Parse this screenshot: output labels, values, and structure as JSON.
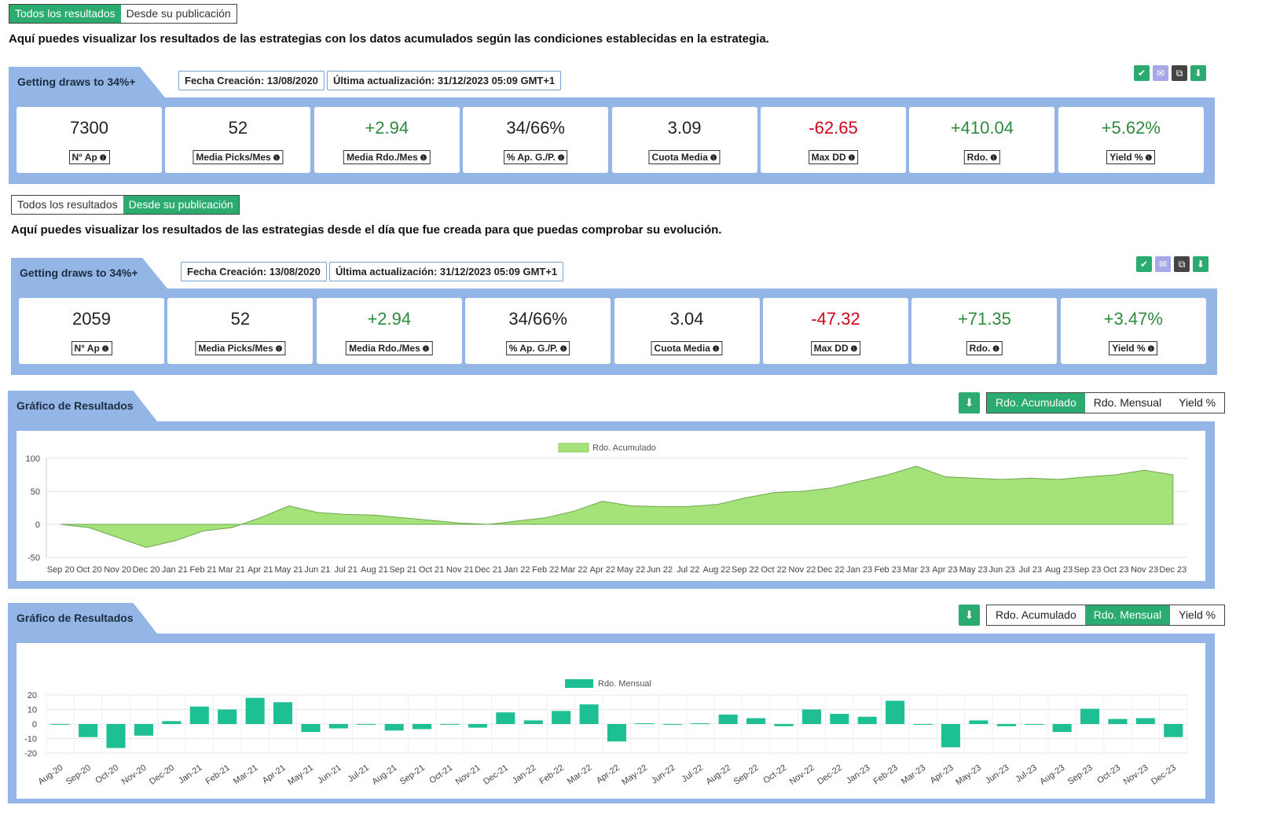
{
  "section1": {
    "toggle": [
      "Todos los resultados",
      "Desde su publicación"
    ],
    "active": 0,
    "description": "Aquí puedes visualizar los resultados de las estrategias con los datos acumulados según las condiciones establecidas en la estrategia.",
    "strategy_name": "Getting draws to 34%+",
    "creation_date": "Fecha Creación: 13/08/2020",
    "last_update": "Última actualización: 31/12/2023 05:09 GMT+1",
    "stats": [
      {
        "value": "7300",
        "label": "N° Ap",
        "tone": "neutral"
      },
      {
        "value": "52",
        "label": "Media Picks/Mes",
        "tone": "neutral"
      },
      {
        "value": "+2.94",
        "label": "Media Rdo./Mes",
        "tone": "pos"
      },
      {
        "value": "34/66%",
        "label": "% Ap. G./P.",
        "tone": "neutral"
      },
      {
        "value": "3.09",
        "label": "Cuota Media",
        "tone": "neutral"
      },
      {
        "value": "-62.65",
        "label": "Max DD",
        "tone": "neg"
      },
      {
        "value": "+410.04",
        "label": "Rdo.",
        "tone": "pos"
      },
      {
        "value": "+5.62%",
        "label": "Yield %",
        "tone": "pos"
      }
    ]
  },
  "section2": {
    "toggle": [
      "Todos los resultados",
      "Desde su publicación"
    ],
    "active": 1,
    "description": "Aquí puedes visualizar los resultados de las estrategias desde el día que fue creada para que puedas comprobar su evolución.",
    "strategy_name": "Getting draws to 34%+",
    "creation_date": "Fecha Creación: 13/08/2020",
    "last_update": "Última actualización: 31/12/2023 05:09 GMT+1",
    "stats": [
      {
        "value": "2059",
        "label": "N° Ap",
        "tone": "neutral"
      },
      {
        "value": "52",
        "label": "Media Picks/Mes",
        "tone": "neutral"
      },
      {
        "value": "+2.94",
        "label": "Media Rdo./Mes",
        "tone": "pos"
      },
      {
        "value": "34/66%",
        "label": "% Ap. G./P.",
        "tone": "neutral"
      },
      {
        "value": "3.04",
        "label": "Cuota Media",
        "tone": "neutral"
      },
      {
        "value": "-47.32",
        "label": "Max DD",
        "tone": "neg"
      },
      {
        "value": "+71.35",
        "label": "Rdo.",
        "tone": "pos"
      },
      {
        "value": "+3.47%",
        "label": "Yield %",
        "tone": "pos"
      }
    ]
  },
  "icons": [
    "check-icon",
    "mail-icon",
    "copy-icon",
    "download-icon"
  ],
  "colors": {
    "green": "#2bab6f",
    "panel_blue": "#94b6e6",
    "area_green": "#a6e27a",
    "bar_teal": "#1fbf94",
    "negative": "#d0021b"
  },
  "chart_tabs": [
    "Rdo. Acumulado",
    "Rdo. Mensual",
    "Yield %"
  ],
  "chart1_heading": "Gráfico de Resultados",
  "chart2_heading": "Gráfico de Resultados",
  "chart_data": [
    {
      "type": "area",
      "legend": "Rdo. Acumulado",
      "active_tab": 0,
      "x": [
        "Sep 20",
        "Oct 20",
        "Nov 20",
        "Dec 20",
        "Jan 21",
        "Feb 21",
        "Mar 21",
        "Apr 21",
        "May 21",
        "Jun 21",
        "Jul 21",
        "Aug 21",
        "Sep 21",
        "Oct 21",
        "Nov 21",
        "Dec 21",
        "Jan 22",
        "Feb 22",
        "Mar 22",
        "Apr 22",
        "May 22",
        "Jun 22",
        "Jul 22",
        "Aug 22",
        "Sep 22",
        "Oct 22",
        "Nov 22",
        "Dec 22",
        "Jan 23",
        "Feb 23",
        "Mar 23",
        "Apr 23",
        "May 23",
        "Jun 23",
        "Jul 23",
        "Aug 23",
        "Sep 23",
        "Oct 23",
        "Nov 23",
        "Dec 23"
      ],
      "values": [
        0,
        -5,
        -20,
        -35,
        -25,
        -10,
        -5,
        10,
        28,
        18,
        15,
        14,
        10,
        6,
        2,
        0,
        5,
        10,
        20,
        35,
        28,
        27,
        27,
        30,
        40,
        48,
        50,
        55,
        65,
        75,
        88,
        72,
        70,
        68,
        70,
        68,
        72,
        75,
        82,
        75
      ],
      "ylim": [
        -50,
        100
      ],
      "yticks": [
        100,
        50,
        0,
        -50
      ],
      "grid": true,
      "legend_position": "top-center"
    },
    {
      "type": "bar",
      "legend": "Rdo. Mensual",
      "active_tab": 1,
      "categories": [
        "Aug-20",
        "Sep-20",
        "Oct-20",
        "Nov-20",
        "Dec-20",
        "Jan-21",
        "Feb-21",
        "Mar-21",
        "Apr-21",
        "May-21",
        "Jun-21",
        "Jul-21",
        "Aug-21",
        "Sep-21",
        "Oct-21",
        "Nov-21",
        "Dec-21",
        "Jan-22",
        "Feb-22",
        "Mar-22",
        "Apr-22",
        "May-22",
        "Jun-22",
        "Jul-22",
        "Aug-22",
        "Sep-22",
        "Oct-22",
        "Nov-22",
        "Dec-22",
        "Jan-23",
        "Feb-23",
        "Mar-23",
        "Apr-23",
        "May-23",
        "Jun-23",
        "Jul-23",
        "Aug-23",
        "Sep-23",
        "Oct-23",
        "Nov-23",
        "Dec-23"
      ],
      "values": [
        0,
        -9,
        -16.5,
        -8,
        2,
        12,
        10,
        18,
        15,
        -5.5,
        -3,
        0,
        -4.5,
        -3.5,
        0,
        -2.5,
        8,
        2.5,
        9,
        13.5,
        -12,
        0.5,
        0,
        0.5,
        6.5,
        4,
        -1.5,
        10,
        7,
        5,
        16,
        0,
        -16,
        2.5,
        -1.5,
        0,
        -5.5,
        10.5,
        3.5,
        4,
        -9
      ],
      "ylim": [
        -20,
        20
      ],
      "yticks": [
        20,
        10,
        0,
        -10,
        -20
      ],
      "grid": true,
      "legend_position": "top-center"
    }
  ]
}
